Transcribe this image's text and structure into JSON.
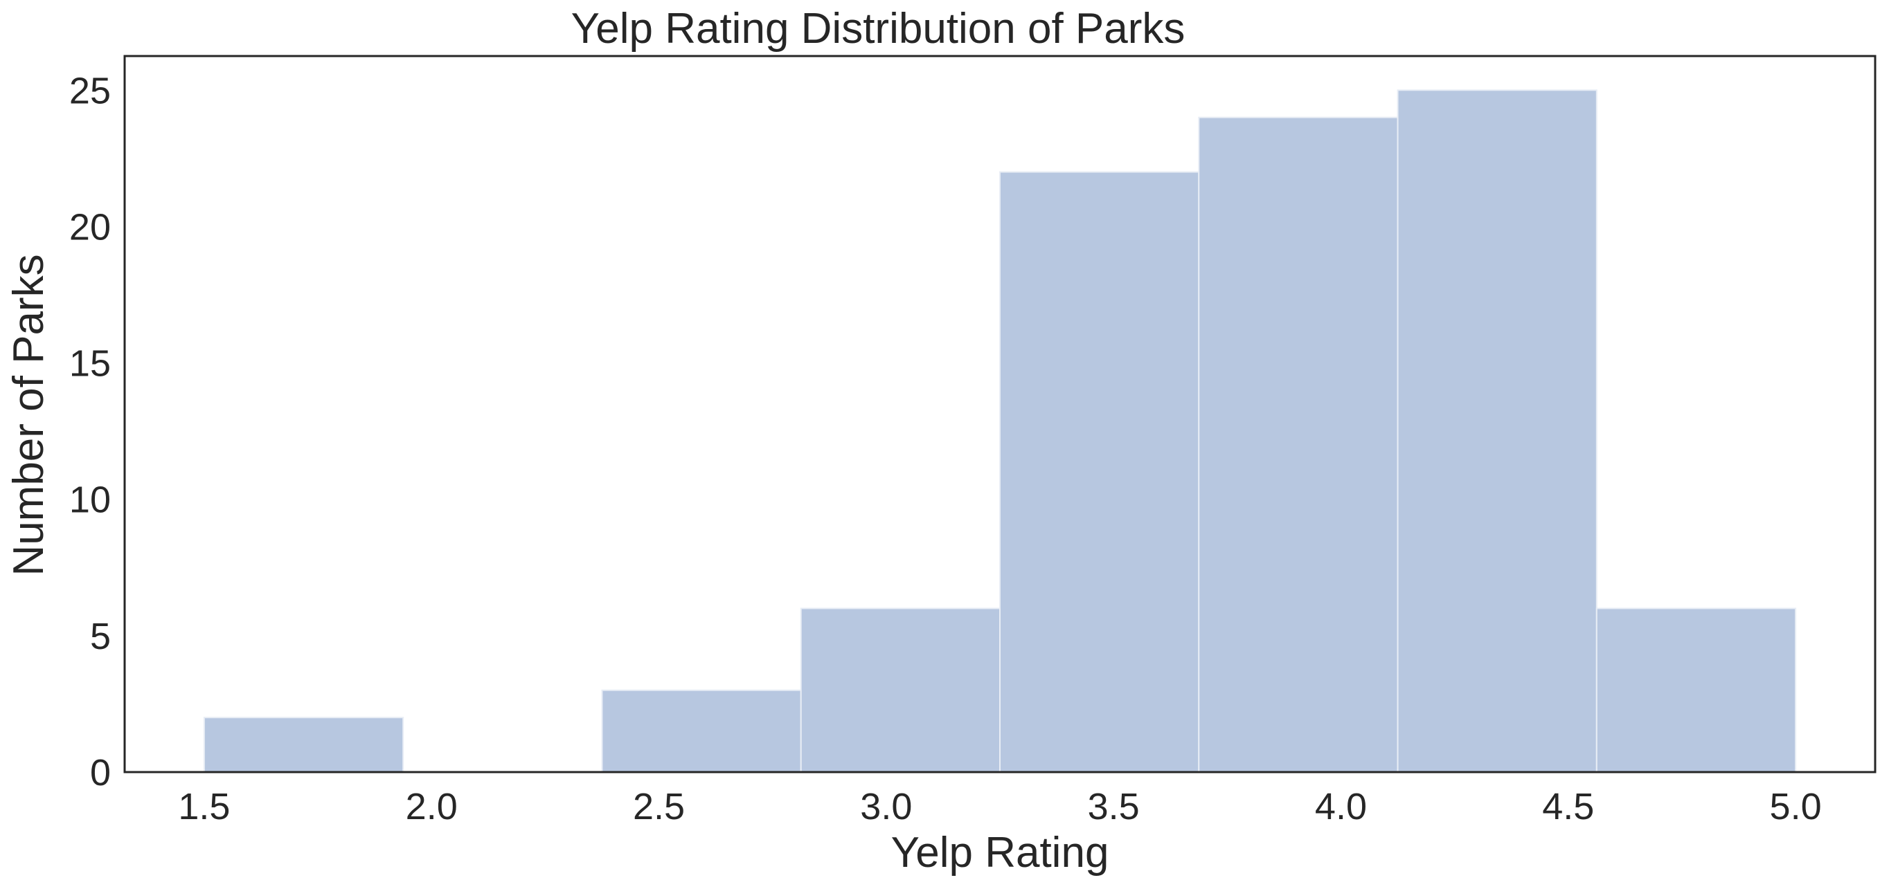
{
  "chart_data": {
    "type": "bar",
    "title": "Yelp Rating Distribution of Parks",
    "xlabel": "Yelp Rating",
    "ylabel": "Number of Parks",
    "bins": [
      {
        "x0": 1.5,
        "x1": 1.9375,
        "count": 2
      },
      {
        "x0": 1.9375,
        "x1": 2.375,
        "count": 0
      },
      {
        "x0": 2.375,
        "x1": 2.8125,
        "count": 3
      },
      {
        "x0": 2.8125,
        "x1": 3.25,
        "count": 6
      },
      {
        "x0": 3.25,
        "x1": 3.6875,
        "count": 22
      },
      {
        "x0": 3.6875,
        "x1": 4.125,
        "count": 24
      },
      {
        "x0": 4.125,
        "x1": 4.5625,
        "count": 25
      },
      {
        "x0": 4.5625,
        "x1": 5.0,
        "count": 6
      }
    ],
    "xlim": [
      1.325,
      5.175
    ],
    "ylim": [
      0,
      26.25
    ],
    "xticks": [
      1.5,
      2.0,
      2.5,
      3.0,
      3.5,
      4.0,
      4.5,
      5.0
    ],
    "xtick_labels": [
      "1.5",
      "2.0",
      "2.5",
      "3.0",
      "3.5",
      "4.0",
      "4.5",
      "5.0"
    ],
    "yticks": [
      0,
      5,
      10,
      15,
      20,
      25
    ],
    "ytick_labels": [
      "0",
      "5",
      "10",
      "15",
      "20",
      "25"
    ],
    "grid": false,
    "bar_color": "#b7c7e0",
    "bar_edge_color": "#e8edf5",
    "axis_color": "#262626"
  }
}
